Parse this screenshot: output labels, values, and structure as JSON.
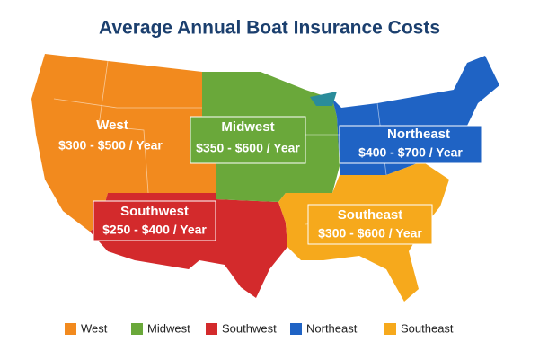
{
  "title": "Average Annual Boat Insurance Costs",
  "regions": [
    {
      "name": "West",
      "cost": "$300 - $500 / Year",
      "color": "#f28a1e"
    },
    {
      "name": "Midwest",
      "cost": "$350 - $600 / Year",
      "color": "#6aa83a"
    },
    {
      "name": "Southwest",
      "cost": "$250 - $400 / Year",
      "color": "#d32a2c"
    },
    {
      "name": "Northeast",
      "cost": "$400 - $700 / Year",
      "color": "#1f63c4"
    },
    {
      "name": "Southeast",
      "cost": "$300 - $600 / Year",
      "color": "#f6a91c"
    }
  ],
  "legend": [
    "West",
    "Midwest",
    "Southwest",
    "Northeast",
    "Southeast"
  ]
}
